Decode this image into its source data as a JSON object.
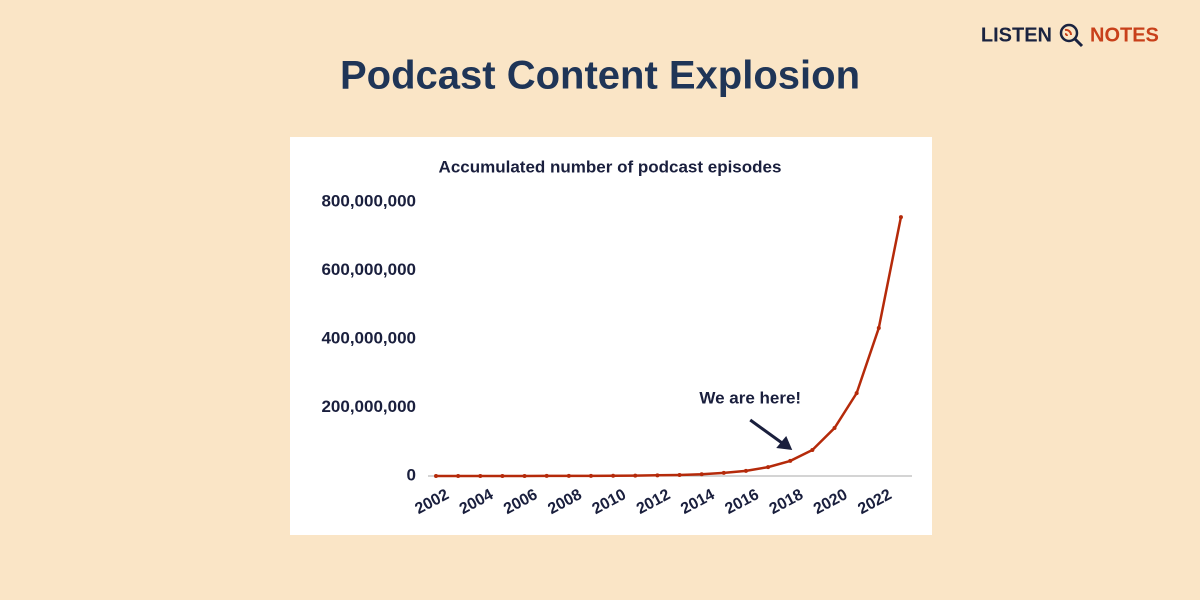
{
  "header": {
    "title": "Podcast Content Explosion",
    "logo": [
      "LISTEN",
      "NOTES"
    ]
  },
  "chart_data": {
    "type": "line",
    "title": "Accumulated number of  podcast episodes",
    "x": [
      2002,
      2003,
      2004,
      2005,
      2006,
      2007,
      2008,
      2009,
      2010,
      2011,
      2012,
      2013,
      2014,
      2015,
      2016,
      2017,
      2018,
      2019,
      2020,
      2021,
      2022,
      2023
    ],
    "values": [
      0,
      10000,
      20000,
      50000,
      100000,
      200000,
      300000,
      500000,
      800000,
      1200000,
      2000000,
      3000000,
      5000000,
      9000000,
      15000000,
      26000000,
      44000000,
      76000000,
      140000000,
      242000000,
      432000000,
      756000000
    ],
    "color": "#b52a0a",
    "xlim": [
      2002,
      2023.5
    ],
    "xticks": [
      2002,
      2004,
      2006,
      2008,
      2010,
      2012,
      2014,
      2016,
      2018,
      2020,
      2022
    ],
    "ylim": [
      0,
      800000000
    ],
    "yticks": [
      {
        "value": 0,
        "label": "0"
      },
      {
        "value": 200000000,
        "label": "200,000,000"
      },
      {
        "value": 400000000,
        "label": "400,000,000"
      },
      {
        "value": 600000000,
        "label": "600,000,000"
      },
      {
        "value": 800000000,
        "label": "800,000,000"
      }
    ],
    "grid": false,
    "annotation": {
      "text": "We are here!",
      "x": 2018
    }
  }
}
